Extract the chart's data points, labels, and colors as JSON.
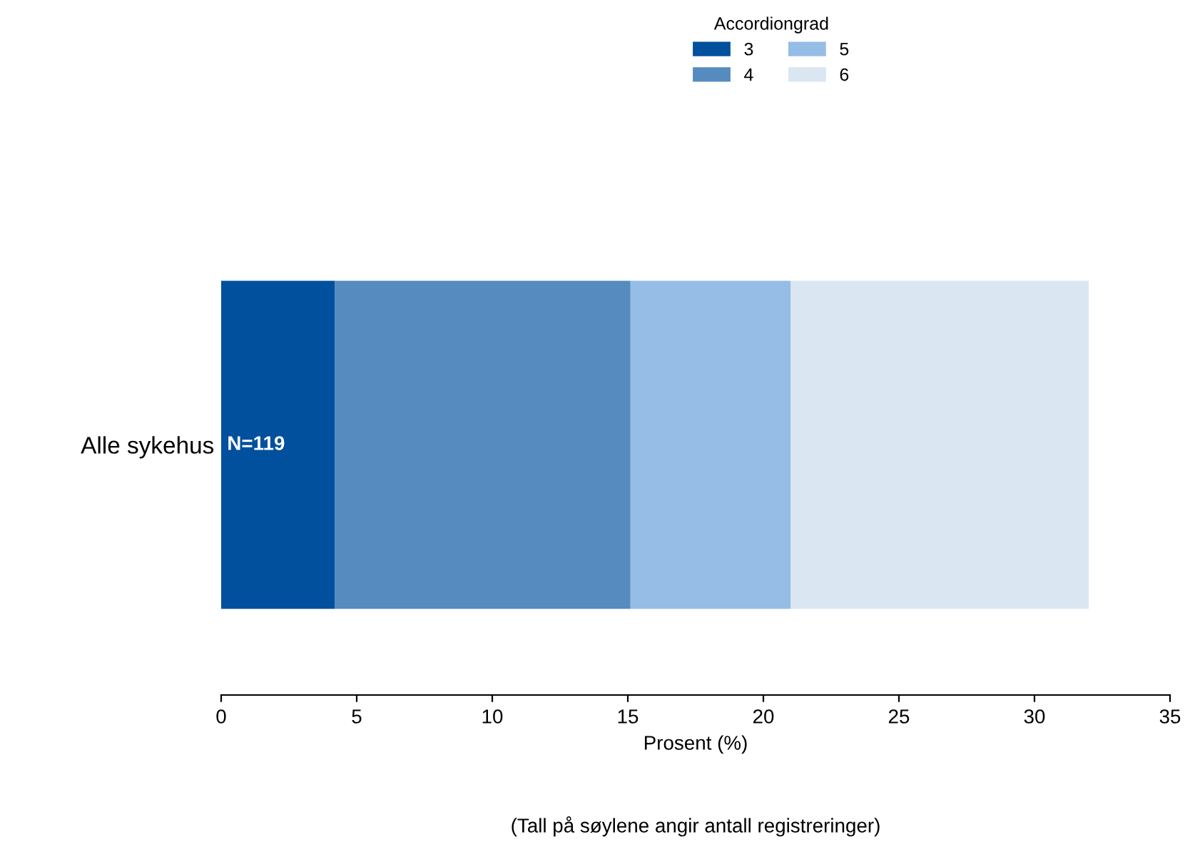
{
  "chart_data": {
    "type": "bar",
    "orientation": "horizontal",
    "stacked": true,
    "categories": [
      "Alle sykehus"
    ],
    "series": [
      {
        "name": "3",
        "color": "#00509e",
        "values": [
          4.2
        ]
      },
      {
        "name": "4",
        "color": "#558bbf",
        "values": [
          10.9
        ]
      },
      {
        "name": "5",
        "color": "#95bde6",
        "values": [
          5.9
        ]
      },
      {
        "name": "6",
        "color": "#dae6f2",
        "values": [
          11.0
        ]
      }
    ],
    "legend_title": "Accordiongrad",
    "legend": "top",
    "xlim": [
      0,
      35
    ],
    "xticks": [
      0,
      5,
      10,
      15,
      20,
      25,
      30,
      35
    ],
    "xlabel": "Prosent (%)",
    "annotations": [
      {
        "text": "N=119",
        "x": 0,
        "y": "Alle sykehus"
      },
      "(Tall på søylene angir antall registreringer)"
    ],
    "grid": false
  }
}
